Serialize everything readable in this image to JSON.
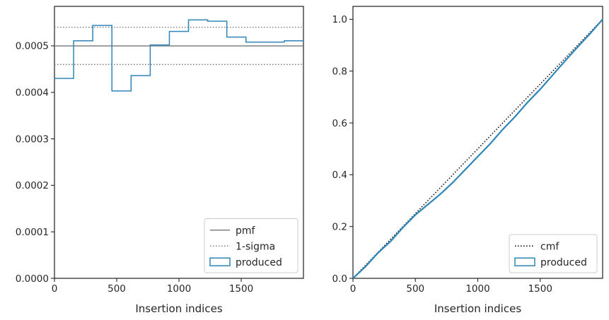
{
  "chart_data": [
    {
      "type": "step",
      "xlabel": "Insertion indices",
      "ylabel": "",
      "xlim": [
        0,
        2000
      ],
      "ylim": [
        0,
        0.000585
      ],
      "xticks": [
        0,
        500,
        1000,
        1500
      ],
      "yticks": [
        0,
        0.0001,
        0.0002,
        0.0003,
        0.0004,
        0.0005
      ],
      "ytick_labels": [
        "0.0000",
        "0.0001",
        "0.0002",
        "0.0003",
        "0.0004",
        "0.0005"
      ],
      "legend_position": "lower-right",
      "pmf": {
        "name": "pmf",
        "value": 0.0005,
        "color": "#808080",
        "style": "solid"
      },
      "sigma": {
        "name": "1-sigma",
        "values": [
          0.00046,
          0.00054
        ],
        "color": "#808080",
        "style": "dotted"
      },
      "series": [
        {
          "name": "produced",
          "color": "#2e86b8",
          "bin_edges": [
            0,
            153.8,
            307.7,
            461.5,
            615.4,
            769.2,
            923.1,
            1076.9,
            1230.8,
            1384.6,
            1538.5,
            1692.3,
            1846.2,
            2000
          ],
          "values": [
            0.00043,
            0.000511,
            0.000544,
            0.000403,
            0.000436,
            0.000502,
            0.000531,
            0.000556,
            0.000553,
            0.000519,
            0.000508,
            0.000508,
            0.000511
          ]
        }
      ]
    },
    {
      "type": "line",
      "xlabel": "Insertion indices",
      "ylabel": "",
      "xlim": [
        0,
        2000
      ],
      "ylim": [
        0,
        1.05
      ],
      "xticks": [
        0,
        500,
        1000,
        1500
      ],
      "yticks": [
        0,
        0.2,
        0.4,
        0.6,
        0.8,
        1.0
      ],
      "ytick_labels": [
        "0.0",
        "0.2",
        "0.4",
        "0.6",
        "0.8",
        "1.0"
      ],
      "legend_position": "lower-right",
      "series": [
        {
          "name": "cmf",
          "color": "#000000",
          "style": "dotted",
          "x": [
            0,
            2000
          ],
          "y": [
            0,
            1.0
          ]
        },
        {
          "name": "produced",
          "color": "#2e86b8",
          "style": "solid",
          "x": [
            0,
            100,
            200,
            300,
            400,
            500,
            600,
            700,
            800,
            900,
            1000,
            1100,
            1200,
            1300,
            1400,
            1500,
            1600,
            1700,
            1800,
            1900,
            2000
          ],
          "y": [
            0,
            0.045,
            0.098,
            0.142,
            0.196,
            0.245,
            0.285,
            0.325,
            0.37,
            0.42,
            0.47,
            0.52,
            0.575,
            0.625,
            0.68,
            0.73,
            0.785,
            0.84,
            0.893,
            0.945,
            1.0
          ]
        }
      ]
    }
  ]
}
